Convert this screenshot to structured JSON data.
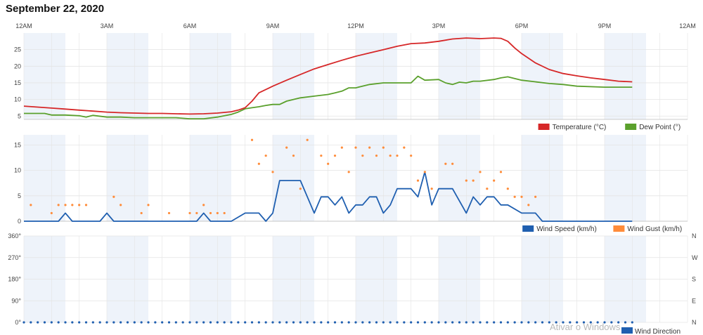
{
  "title": "September 22, 2020",
  "watermark": "Ativar o Windows",
  "colors": {
    "temperature": "#d62728",
    "dew_point": "#5aa02c",
    "wind_speed": "#1f5fb0",
    "wind_gust": "#ff8c3a",
    "wind_direction": "#1f5fb0",
    "band": "#eef3fa",
    "grid": "#e4e4e4"
  },
  "chart_data": [
    {
      "type": "line",
      "x_axis": {
        "ticks": [
          "12AM",
          "3AM",
          "6AM",
          "9AM",
          "12PM",
          "3PM",
          "6PM",
          "9PM",
          "12AM"
        ],
        "range_hours": [
          0,
          24
        ]
      },
      "ylim": [
        4,
        30
      ],
      "yticks": [
        5,
        10,
        15,
        20,
        25
      ],
      "series": [
        {
          "name": "Temperature (°C)",
          "hours": [
            0,
            0.5,
            1,
            1.5,
            2,
            2.5,
            3,
            3.5,
            4,
            4.5,
            5,
            5.5,
            6,
            6.5,
            7,
            7.5,
            7.75,
            8,
            8.25,
            8.5,
            9,
            9.5,
            10,
            10.5,
            11,
            11.5,
            12,
            12.5,
            13,
            13.5,
            14,
            14.5,
            15,
            15.5,
            16,
            16.5,
            17,
            17.25,
            17.5,
            17.75,
            18,
            18.5,
            19,
            19.5,
            20,
            20.5,
            21,
            21.5,
            22
          ],
          "values": [
            8,
            7.7,
            7.4,
            7.1,
            6.8,
            6.5,
            6.2,
            6,
            5.9,
            5.8,
            5.8,
            5.7,
            5.6,
            5.7,
            5.9,
            6.3,
            6.8,
            7.5,
            9.5,
            12,
            14,
            15.8,
            17.5,
            19.2,
            20.5,
            21.8,
            23,
            24,
            25,
            26,
            26.8,
            27,
            27.5,
            28.2,
            28.5,
            28.3,
            28.5,
            28.4,
            27.5,
            25.5,
            23.8,
            21,
            19,
            17.8,
            17.1,
            16.5,
            16,
            15.5,
            15.3
          ]
        },
        {
          "name": "Dew Point (°)",
          "hours": [
            0,
            0.75,
            1,
            1.5,
            2,
            2.25,
            2.5,
            3,
            3.5,
            4,
            4.5,
            5,
            5.5,
            6,
            6.5,
            7,
            7.5,
            7.75,
            8,
            8.25,
            8.5,
            8.75,
            9,
            9.25,
            9.5,
            10,
            10.5,
            11,
            11.25,
            11.5,
            11.75,
            12,
            12.5,
            13,
            13.5,
            14,
            14.25,
            14.5,
            15,
            15.25,
            15.5,
            15.75,
            16,
            16.25,
            16.5,
            17,
            17.25,
            17.5,
            18,
            18.5,
            19,
            19.5,
            20,
            21,
            22
          ],
          "values": [
            5.8,
            5.8,
            5.3,
            5.3,
            5.1,
            4.7,
            5.2,
            4.7,
            4.7,
            4.5,
            4.5,
            4.5,
            4.5,
            4.2,
            4.2,
            4.7,
            5.5,
            6.2,
            7.2,
            7.5,
            7.8,
            8.2,
            8.5,
            8.5,
            9.5,
            10.5,
            11,
            11.5,
            12,
            12.5,
            13.5,
            13.5,
            14.5,
            15,
            15,
            15,
            17,
            15.8,
            16,
            15,
            14.5,
            15.2,
            15,
            15.5,
            15.5,
            16,
            16.5,
            16.8,
            15.8,
            15.3,
            14.8,
            14.5,
            14,
            13.7,
            13.7
          ]
        }
      ],
      "legend": [
        "Temperature (°C)",
        "Dew Point (°)"
      ],
      "legend_position": "bottom-right",
      "grid": true
    },
    {
      "type": "line",
      "ylim": [
        0,
        17
      ],
      "yticks": [
        0,
        5,
        10,
        15
      ],
      "series": [
        {
          "name": "Wind Speed (km/h)",
          "hours": [
            0,
            1.25,
            1.5,
            1.75,
            2,
            2.5,
            2.75,
            3,
            3.25,
            3.5,
            6.25,
            6.5,
            6.75,
            7,
            7.5,
            8,
            8.5,
            8.75,
            9,
            9.25,
            9.5,
            10,
            10.25,
            10.5,
            10.75,
            11,
            11.25,
            11.5,
            11.75,
            12,
            12.25,
            12.5,
            12.75,
            13,
            13.25,
            13.5,
            13.75,
            14,
            14.25,
            14.5,
            14.75,
            15,
            15.25,
            15.5,
            16,
            16.25,
            16.5,
            16.75,
            17,
            17.25,
            17.5,
            18,
            18.5,
            18.75,
            22
          ],
          "values": [
            0,
            0,
            1.6,
            0,
            0,
            0,
            0,
            1.6,
            0,
            0,
            0,
            1.6,
            0,
            0,
            0,
            1.6,
            1.6,
            0,
            1.6,
            8,
            8,
            8,
            4.8,
            1.6,
            4.8,
            4.8,
            3.2,
            4.8,
            1.6,
            3.2,
            3.2,
            4.8,
            4.8,
            1.6,
            3.2,
            6.4,
            6.4,
            6.4,
            4.8,
            9.7,
            3.2,
            6.4,
            6.4,
            6.4,
            1.6,
            4.8,
            3.2,
            4.8,
            4.8,
            3.2,
            3.2,
            1.6,
            1.6,
            0,
            0
          ]
        },
        {
          "name": "Wind Gust (km/h)",
          "style": "dots",
          "hours": [
            0.25,
            1,
            1.25,
            1.5,
            1.75,
            2,
            2.25,
            3.25,
            3.5,
            4.25,
            4.5,
            5.25,
            6,
            6.25,
            6.5,
            6.75,
            7,
            7.25,
            8.25,
            8.5,
            8.75,
            9,
            9.5,
            9.75,
            10,
            10.25,
            10.75,
            11,
            11.25,
            11.5,
            11.75,
            12,
            12.25,
            12.5,
            12.75,
            13,
            13.25,
            13.5,
            13.75,
            14,
            14.25,
            14.5,
            14.75,
            15.25,
            15.5,
            16,
            16.25,
            16.5,
            16.75,
            17,
            17.25,
            17.5,
            17.75,
            18,
            18.25,
            18.5
          ],
          "values": [
            3.2,
            1.6,
            3.2,
            3.2,
            3.2,
            3.2,
            3.2,
            4.8,
            3.2,
            1.6,
            3.2,
            1.6,
            1.6,
            1.6,
            3.2,
            1.6,
            1.6,
            1.6,
            16,
            11.3,
            12.9,
            9.7,
            14.5,
            12.9,
            6.4,
            16,
            12.9,
            11.3,
            12.9,
            14.5,
            9.7,
            14.5,
            12.9,
            14.5,
            12.9,
            14.5,
            12.9,
            12.9,
            14.5,
            12.9,
            8,
            9.7,
            6.4,
            11.3,
            11.3,
            8,
            8,
            9.7,
            6.4,
            8,
            9.7,
            6.4,
            4.8,
            4.8,
            3.2,
            4.8
          ]
        }
      ],
      "legend": [
        "Wind Speed (km/h)",
        "Wind Gust (km/h)"
      ],
      "legend_position": "bottom-right",
      "grid": true
    },
    {
      "type": "scatter",
      "ylim": [
        0,
        360
      ],
      "yticks": [
        "0°",
        "90°",
        "180°",
        "270°",
        "360°"
      ],
      "ytick_values": [
        0,
        90,
        180,
        270,
        360
      ],
      "right_ticks": [
        "N",
        "E",
        "S",
        "W",
        "N"
      ],
      "series": [
        {
          "name": "Wind Direction",
          "hours": [
            0,
            0.25,
            0.5,
            0.75,
            1,
            1.25,
            1.5,
            1.75,
            2,
            2.25,
            2.5,
            2.75,
            3,
            3.25,
            3.5,
            3.75,
            4,
            4.25,
            4.5,
            4.75,
            5,
            5.25,
            5.5,
            5.75,
            6,
            6.25,
            6.5,
            6.75,
            7,
            7.25,
            7.5,
            7.75,
            8,
            8.25,
            8.5,
            8.75,
            9,
            9.25,
            9.5,
            9.75,
            10,
            10.25,
            10.5,
            10.75,
            11,
            11.25,
            11.5,
            11.75,
            12,
            12.25,
            12.5,
            12.75,
            13,
            13.25,
            13.5,
            13.75,
            14,
            14.25,
            14.5,
            14.75,
            15,
            15.25,
            15.5,
            15.75,
            16,
            16.25,
            16.5,
            16.75,
            17,
            17.25,
            17.5,
            17.75,
            18,
            18.25,
            18.5,
            18.75,
            19,
            19.25,
            19.5,
            19.75,
            20,
            20.25,
            20.5,
            20.75,
            21,
            21.25,
            21.5,
            21.75,
            22
          ],
          "values": [
            0,
            0,
            0,
            0,
            0,
            0,
            0,
            0,
            0,
            0,
            0,
            0,
            0,
            0,
            0,
            0,
            0,
            0,
            0,
            0,
            0,
            0,
            0,
            0,
            0,
            0,
            0,
            0,
            0,
            0,
            0,
            0,
            0,
            0,
            0,
            0,
            0,
            0,
            0,
            0,
            0,
            0,
            0,
            0,
            0,
            0,
            0,
            0,
            0,
            0,
            0,
            0,
            0,
            0,
            0,
            0,
            0,
            0,
            0,
            0,
            0,
            0,
            0,
            0,
            0,
            0,
            0,
            0,
            0,
            0,
            0,
            0,
            0,
            0,
            0,
            0,
            0,
            0,
            0,
            0,
            0,
            0,
            0,
            0,
            0,
            0,
            0,
            0,
            0
          ]
        }
      ],
      "legend": [
        "Wind Direction"
      ],
      "legend_position": "bottom-right",
      "grid": true
    }
  ]
}
